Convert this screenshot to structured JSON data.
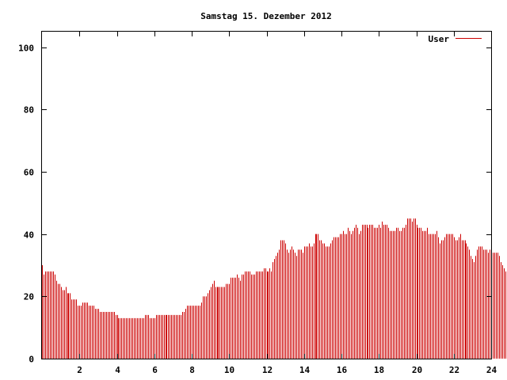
{
  "chart_data": {
    "type": "bar",
    "title": "Samstag 15. Dezember 2012",
    "xlabel": "",
    "ylabel": "",
    "xlim": [
      0,
      24
    ],
    "ylim": [
      0,
      105
    ],
    "x_ticks": [
      "2",
      "4",
      "6",
      "8",
      "10",
      "12",
      "14",
      "16",
      "18",
      "20",
      "22",
      "24"
    ],
    "y_ticks": [
      "0",
      "20",
      "40",
      "60",
      "80",
      "100"
    ],
    "grid": false,
    "legend_position": "top-right",
    "bar_color": "#cc0000",
    "interval_minutes": 5,
    "series": [
      {
        "name": "User",
        "values": [
          30,
          27,
          28,
          28,
          28,
          28,
          28,
          28,
          27,
          25,
          24,
          24,
          23,
          22,
          22,
          23,
          21,
          21,
          21,
          19,
          19,
          19,
          19,
          17,
          17,
          17,
          18,
          18,
          18,
          18,
          17,
          17,
          17,
          17,
          16,
          16,
          16,
          15,
          15,
          15,
          15,
          15,
          15,
          15,
          15,
          15,
          15,
          14,
          14,
          13,
          13,
          13,
          13,
          13,
          13,
          13,
          13,
          13,
          13,
          13,
          13,
          13,
          13,
          13,
          13,
          13,
          14,
          14,
          14,
          13,
          13,
          13,
          13,
          14,
          14,
          14,
          14,
          14,
          14,
          14,
          14,
          14,
          14,
          14,
          14,
          14,
          14,
          14,
          14,
          14,
          15,
          15,
          16,
          17,
          17,
          17,
          17,
          17,
          17,
          17,
          17,
          17,
          18,
          20,
          20,
          20,
          21,
          22,
          23,
          24,
          25,
          23,
          23,
          23,
          23,
          23,
          23,
          23,
          24,
          24,
          24,
          26,
          26,
          26,
          26,
          27,
          26,
          25,
          27,
          27,
          28,
          28,
          28,
          28,
          27,
          27,
          27,
          28,
          28,
          28,
          28,
          28,
          29,
          29,
          28,
          28,
          29,
          28,
          31,
          32,
          33,
          34,
          35,
          38,
          38,
          38,
          37,
          35,
          34,
          35,
          36,
          35,
          34,
          33,
          35,
          35,
          35,
          34,
          36,
          36,
          36,
          37,
          36,
          36,
          37,
          40,
          40,
          40,
          38,
          38,
          37,
          37,
          36,
          36,
          36,
          37,
          38,
          39,
          39,
          39,
          39,
          40,
          40,
          41,
          40,
          40,
          42,
          41,
          40,
          41,
          42,
          43,
          42,
          40,
          41,
          43,
          43,
          43,
          43,
          42,
          43,
          43,
          43,
          42,
          42,
          42,
          43,
          42,
          44,
          43,
          43,
          43,
          42,
          41,
          41,
          41,
          41,
          42,
          42,
          41,
          41,
          42,
          42,
          43,
          45,
          45,
          45,
          44,
          45,
          45,
          43,
          42,
          42,
          42,
          41,
          41,
          41,
          42,
          40,
          40,
          40,
          40,
          40,
          41,
          39,
          37,
          38,
          38,
          39,
          40,
          40,
          40,
          40,
          40,
          39,
          38,
          38,
          39,
          40,
          38,
          38,
          38,
          37,
          36,
          35,
          33,
          32,
          31,
          33,
          35,
          36,
          36,
          36,
          35,
          35,
          35,
          34,
          35,
          33,
          34,
          34,
          34,
          34,
          33,
          31,
          30,
          29,
          28,
          28,
          27,
          27,
          27,
          27,
          27,
          27,
          27,
          26,
          25
        ]
      }
    ]
  }
}
